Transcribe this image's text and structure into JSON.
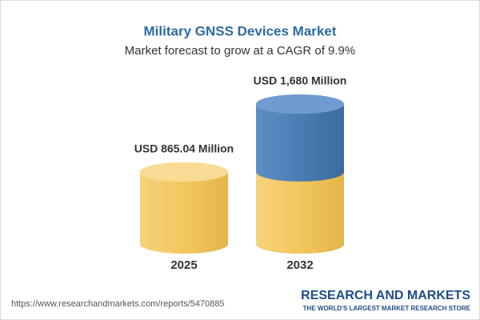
{
  "chart_data": {
    "type": "cylinder",
    "title": "Military GNSS Devices Market",
    "subtitle": "Market forecast to grow at a CAGR of 9.9%",
    "categories": [
      "2025",
      "2032"
    ],
    "values": [
      865.04,
      1680
    ],
    "value_labels": [
      "USD 865.04 Million",
      "USD 1,680 Million"
    ],
    "colors": [
      "#f2c75e",
      "#4a7db4"
    ],
    "source": "https://www.researchandmarkets.com/reports/5470885",
    "brand": "RESEARCH AND MARKETS",
    "tagline": "THE WORLD'S LARGEST MARKET RESEARCH STORE"
  }
}
